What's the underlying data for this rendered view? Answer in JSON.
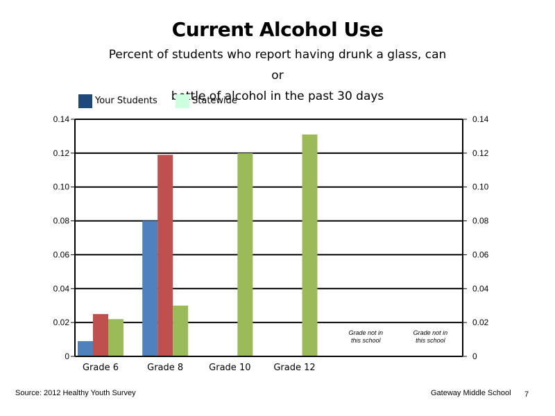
{
  "title": "Current Alcohol Use",
  "subtitle_line1": "Percent of students who report having drunk a glass, can or",
  "subtitle_line2": "bottle of alcohol in the past 30 days",
  "legend": [
    {
      "label": "Your Students",
      "color": "#1f497d"
    },
    {
      "label": "Statewide",
      "color": "#ccffdd"
    }
  ],
  "chart_data": {
    "type": "bar",
    "categories": [
      "Grade 6",
      "Grade 8",
      "Grade 10",
      "Grade 12",
      "",
      ""
    ],
    "series": [
      {
        "color": "#4f81bd",
        "values": [
          0.009,
          0.08,
          null,
          null,
          null,
          null
        ]
      },
      {
        "color": "#c0504d",
        "values": [
          0.025,
          0.119,
          null,
          null,
          null,
          null
        ]
      },
      {
        "color": "#9bbb59",
        "values": [
          0.022,
          0.03,
          0.12,
          0.131,
          null,
          null
        ]
      }
    ],
    "ylim": [
      0,
      0.14
    ],
    "yticks": [
      "0",
      "0.02",
      "0.04",
      "0.06",
      "0.08",
      "0.10",
      "0.12",
      "0.14"
    ],
    "grid": true,
    "secondary_axis": true,
    "annotations": [
      {
        "category_index": 4,
        "line1": "Grade not in",
        "line2": "this school"
      },
      {
        "category_index": 5,
        "line1": "Grade not in",
        "line2": "this school"
      }
    ]
  },
  "footer": {
    "source": "Source: 2012 Healthy Youth Survey",
    "school": "Gateway Middle  School",
    "page": "7"
  }
}
